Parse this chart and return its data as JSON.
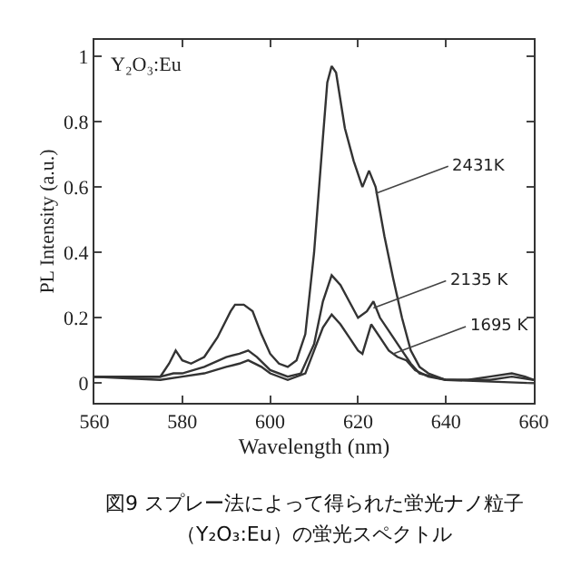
{
  "chart_data": {
    "type": "line",
    "xlabel": "Wavelength (nm)",
    "ylabel": "PL Intensity (a.u.)",
    "xlim": [
      560,
      660
    ],
    "xticks": [
      560,
      580,
      600,
      620,
      640,
      660
    ],
    "ylim": [
      -0.06,
      1.05
    ],
    "yticks": [
      0,
      0.2,
      0.4,
      0.6,
      0.8,
      1
    ],
    "marker": "none",
    "line_style": "solid",
    "series": [
      {
        "color": "#333333",
        "x": [
          560,
          570,
          575,
          577,
          578.5,
          580,
          582,
          585,
          588,
          591,
          592,
          594,
          596,
          598,
          600,
          602,
          604,
          606,
          608,
          610,
          612,
          613,
          614,
          615,
          617,
          619,
          621,
          622.5,
          624,
          626,
          628,
          630,
          632,
          634,
          636,
          640,
          645,
          650,
          655,
          658,
          660
        ],
        "values": [
          0.02,
          0.02,
          0.02,
          0.06,
          0.1,
          0.07,
          0.06,
          0.08,
          0.14,
          0.22,
          0.24,
          0.24,
          0.22,
          0.15,
          0.09,
          0.06,
          0.05,
          0.07,
          0.15,
          0.4,
          0.75,
          0.92,
          0.97,
          0.95,
          0.78,
          0.68,
          0.6,
          0.65,
          0.6,
          0.45,
          0.32,
          0.2,
          0.1,
          0.05,
          0.03,
          0.01,
          0.01,
          0.02,
          0.03,
          0.02,
          0.01
        ]
      },
      {
        "color": "#333333",
        "x": [
          560,
          575,
          578,
          580,
          585,
          590,
          593,
          595,
          597,
          600,
          604,
          607,
          610,
          612,
          614,
          616,
          618,
          620,
          622,
          623.5,
          625,
          628,
          630,
          632,
          634,
          640,
          650,
          655,
          660
        ],
        "values": [
          0.02,
          0.02,
          0.03,
          0.03,
          0.05,
          0.08,
          0.09,
          0.1,
          0.08,
          0.04,
          0.02,
          0.03,
          0.12,
          0.25,
          0.33,
          0.3,
          0.25,
          0.2,
          0.22,
          0.25,
          0.2,
          0.14,
          0.1,
          0.06,
          0.03,
          0.01,
          0.01,
          0.02,
          0.01
        ]
      },
      {
        "color": "#333333",
        "x": [
          560,
          575,
          580,
          585,
          590,
          593,
          595,
          598,
          600,
          604,
          608,
          610,
          612,
          614,
          616,
          618,
          620,
          621,
          623,
          625,
          627,
          629,
          631,
          633,
          636,
          640,
          660
        ],
        "values": [
          0.02,
          0.01,
          0.02,
          0.03,
          0.05,
          0.06,
          0.07,
          0.05,
          0.03,
          0.01,
          0.03,
          0.1,
          0.17,
          0.21,
          0.18,
          0.14,
          0.1,
          0.09,
          0.18,
          0.14,
          0.1,
          0.08,
          0.07,
          0.04,
          0.02,
          0.01,
          0.0
        ]
      }
    ],
    "annotations": [
      "Y₂O₃:Eu",
      {
        "text": "2431K",
        "x": 624,
        "y": 0.58
      },
      {
        "text": "2135 K",
        "x": 623.5,
        "y": 0.23
      },
      {
        "text": "1695 K",
        "x": 628,
        "y": 0.09
      },
      "図9 スプレー法によって得られた蛍光ナノ粒子",
      "（Y₂O₃:Eu）の蛍光スペクトル"
    ]
  }
}
